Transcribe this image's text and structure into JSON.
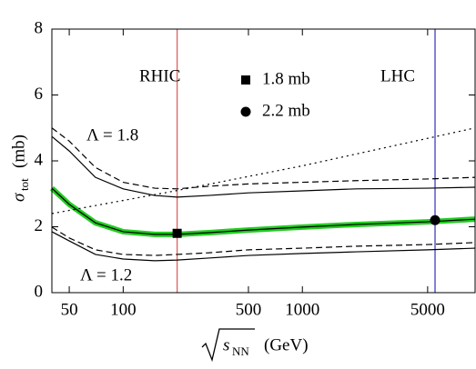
{
  "chart_data": {
    "type": "line",
    "xscale": "log",
    "xlim": [
      40,
      9200
    ],
    "ylim": [
      0,
      8
    ],
    "xticks": [
      50,
      100,
      500,
      1000,
      5000
    ],
    "yticks": [
      0,
      2,
      4,
      6,
      8
    ],
    "x_label": {
      "symbol": "s",
      "subscript": "NN",
      "unit": "(GeV)"
    },
    "y_label": {
      "symbol": "σ",
      "subscript": "tot",
      "unit": "(mb)"
    },
    "x": [
      40,
      50,
      70,
      100,
      150,
      200,
      300,
      500,
      1000,
      2000,
      5000,
      9200
    ],
    "series": [
      {
        "color": "#000000",
        "style": "solid",
        "values": [
          4.74,
          4.3,
          3.5,
          3.15,
          2.95,
          2.9,
          2.95,
          3.03,
          3.09,
          3.15,
          3.17,
          3.2
        ]
      },
      {
        "color": "#000000",
        "style": "dashed",
        "values": [
          5.0,
          4.6,
          3.8,
          3.35,
          3.17,
          3.15,
          3.23,
          3.3,
          3.35,
          3.4,
          3.45,
          3.5
        ]
      },
      {
        "color": "#000000",
        "style": "solid",
        "band_color": "#22cc22",
        "values": [
          3.17,
          2.68,
          2.12,
          1.85,
          1.77,
          1.77,
          1.82,
          1.9,
          1.99,
          2.07,
          2.15,
          2.23
        ]
      },
      {
        "color": "#000000",
        "style": "solid",
        "values": [
          1.85,
          1.57,
          1.16,
          1.02,
          0.97,
          0.99,
          1.05,
          1.13,
          1.19,
          1.24,
          1.3,
          1.35
        ]
      },
      {
        "color": "#000000",
        "style": "dashed",
        "values": [
          1.99,
          1.66,
          1.3,
          1.16,
          1.13,
          1.16,
          1.21,
          1.3,
          1.35,
          1.41,
          1.46,
          1.52
        ]
      },
      {
        "color": "#000000",
        "style": "dotted",
        "x": [
          40,
          200,
          1000,
          9200
        ],
        "values": [
          2.4,
          3.1,
          3.85,
          5.0
        ]
      }
    ],
    "vlines": [
      {
        "label": "RHIC",
        "x": 200,
        "color": "#e06060"
      },
      {
        "label": "LHC",
        "x": 5500,
        "color": "#4040c0"
      }
    ],
    "markers": [
      {
        "name": "1.8 mb",
        "shape": "square",
        "x": 200,
        "y": 1.8
      },
      {
        "name": "2.2 mb",
        "shape": "circle",
        "x": 5500,
        "y": 2.2
      }
    ],
    "annotations": [
      "Λ = 1.8",
      "Λ = 1.2"
    ]
  }
}
